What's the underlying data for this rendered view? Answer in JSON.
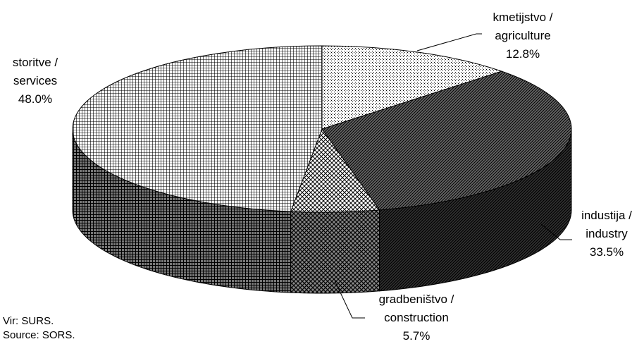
{
  "chart_data": {
    "type": "pie",
    "title": "",
    "slices": [
      {
        "name_sl": "kmetijstvo /",
        "name_en": "agriculture",
        "value": 12.8,
        "label": "12.8%",
        "pattern": "dots"
      },
      {
        "name_sl": "industija /",
        "name_en": "industry",
        "value": 33.5,
        "label": "33.5%",
        "pattern": "diag"
      },
      {
        "name_sl": "gradbeništvo /",
        "name_en": "construction",
        "value": 5.7,
        "label": "5.7%",
        "pattern": "weave"
      },
      {
        "name_sl": "storitve /",
        "name_en": "services",
        "value": 48.0,
        "label": "48.0%",
        "pattern": "grid"
      }
    ],
    "legend": "none"
  },
  "source": {
    "sl": "Vir: SURS.",
    "en": "Source: SORS."
  }
}
